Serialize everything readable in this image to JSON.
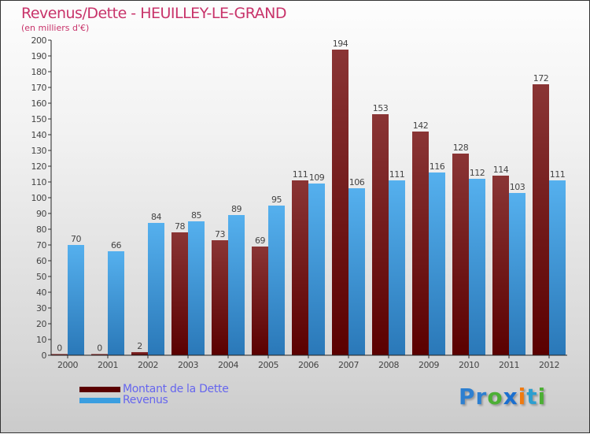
{
  "title": "Revenus/Dette - HEUILLEY-LE-GRAND",
  "subtitle": "(en milliers d'€)",
  "logo": "Proxiti",
  "colors": {
    "dette": "#6b0f0f",
    "revenus": "#3a9ee0",
    "title": "#c8336a",
    "legend": "#6666ee"
  },
  "chart_data": {
    "type": "bar",
    "title": "Revenus/Dette - HEUILLEY-LE-GRAND",
    "ylabel": "(en milliers d'€)",
    "ylim": [
      0,
      200
    ],
    "yticks": [
      0,
      10,
      20,
      30,
      40,
      50,
      60,
      70,
      80,
      90,
      100,
      110,
      120,
      130,
      140,
      150,
      160,
      170,
      180,
      190,
      200
    ],
    "categories": [
      "2000",
      "2001",
      "2002",
      "2003",
      "2004",
      "2005",
      "2006",
      "2007",
      "2008",
      "2009",
      "2010",
      "2011",
      "2012"
    ],
    "series": [
      {
        "name": "Montant de la Dette",
        "values": [
          0,
          0,
          2,
          78,
          73,
          69,
          111,
          194,
          153,
          142,
          128,
          114,
          172
        ]
      },
      {
        "name": "Revenus",
        "values": [
          70,
          66,
          84,
          85,
          89,
          95,
          109,
          106,
          111,
          116,
          112,
          103,
          111
        ]
      }
    ],
    "legend": "bottom-left"
  }
}
